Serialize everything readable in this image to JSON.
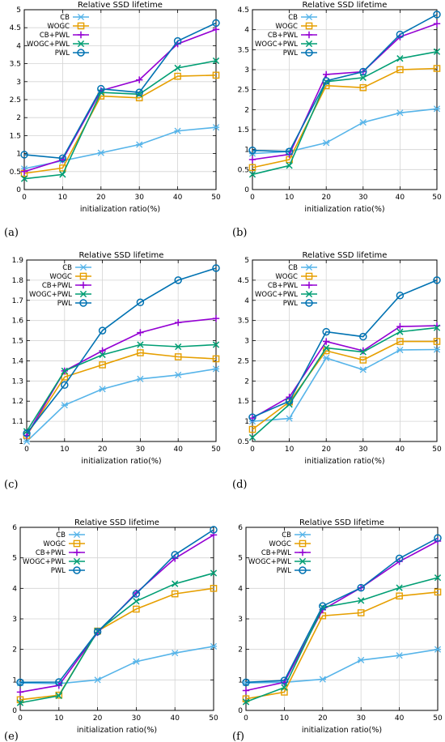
{
  "chart_data": [
    {
      "panel": "(a)",
      "type": "line",
      "title": "Relative SSD lifetime",
      "xlabel": "initialization ratio(%)",
      "ylabel": "",
      "ylim": [
        0,
        5
      ],
      "yticks": [
        0,
        0.5,
        1,
        1.5,
        2,
        2.5,
        3,
        3.5,
        4,
        4.5,
        5
      ],
      "ytick_labels": [
        "0",
        "0.5",
        "1",
        "1.5",
        "2",
        "2.5",
        "3",
        "3.5",
        "4",
        "4.5",
        "5"
      ],
      "x": [
        0,
        10,
        20,
        30,
        40,
        50
      ],
      "xtick_labels": [
        "0",
        "10",
        "20",
        "30",
        "40",
        "50"
      ],
      "legend_position": "top-left",
      "grid": true,
      "series": [
        {
          "name": "CB",
          "values": [
            0.58,
            0.8,
            1.02,
            1.25,
            1.63,
            1.73
          ]
        },
        {
          "name": "WOGC",
          "values": [
            0.45,
            0.6,
            2.6,
            2.55,
            3.15,
            3.18
          ]
        },
        {
          "name": "CB+PWL",
          "values": [
            0.5,
            0.83,
            2.75,
            3.05,
            4.05,
            4.45
          ]
        },
        {
          "name": "WOGC+PWL",
          "values": [
            0.3,
            0.42,
            2.7,
            2.65,
            3.38,
            3.58
          ]
        },
        {
          "name": "PWL",
          "values": [
            0.97,
            0.87,
            2.8,
            2.7,
            4.13,
            4.63
          ]
        }
      ]
    },
    {
      "panel": "(b)",
      "type": "line",
      "title": "Relative SSD lifetime",
      "xlabel": "initialization ratio(%)",
      "ylabel": "",
      "ylim": [
        0,
        4.5
      ],
      "yticks": [
        0,
        0.5,
        1,
        1.5,
        2,
        2.5,
        3,
        3.5,
        4,
        4.5
      ],
      "ytick_labels": [
        "0",
        "0.5",
        "1",
        "1.5",
        "2",
        "2.5",
        "3",
        "3.5",
        "4",
        "4.5"
      ],
      "x": [
        0,
        10,
        20,
        30,
        40,
        50
      ],
      "xtick_labels": [
        "0",
        "10",
        "20",
        "30",
        "40",
        "50"
      ],
      "legend_position": "top-left",
      "grid": true,
      "series": [
        {
          "name": "CB",
          "values": [
            0.9,
            0.95,
            1.17,
            1.68,
            1.92,
            2.02
          ]
        },
        {
          "name": "WOGC",
          "values": [
            0.55,
            0.75,
            2.6,
            2.55,
            3.0,
            3.03
          ]
        },
        {
          "name": "CB+PWL",
          "values": [
            0.75,
            0.88,
            2.88,
            2.95,
            3.82,
            4.15
          ]
        },
        {
          "name": "WOGC+PWL",
          "values": [
            0.38,
            0.6,
            2.7,
            2.8,
            3.28,
            3.45
          ]
        },
        {
          "name": "PWL",
          "values": [
            0.98,
            0.95,
            2.72,
            2.95,
            3.88,
            4.38
          ]
        }
      ]
    },
    {
      "panel": "(c)",
      "type": "line",
      "title": "Relative SSD lifetime",
      "xlabel": "initialization ratio(%)",
      "ylabel": "",
      "ylim": [
        1,
        1.9
      ],
      "yticks": [
        1,
        1.1,
        1.2,
        1.3,
        1.4,
        1.5,
        1.6,
        1.7,
        1.8,
        1.9
      ],
      "ytick_labels": [
        "1",
        "1.1",
        "1.2",
        "1.3",
        "1.4",
        "1.5",
        "1.6",
        "1.7",
        "1.8",
        "1.9"
      ],
      "x": [
        0,
        10,
        20,
        30,
        40,
        50
      ],
      "xtick_labels": [
        "0",
        "10",
        "20",
        "30",
        "40",
        "50"
      ],
      "legend_position": "top-left",
      "grid": true,
      "series": [
        {
          "name": "CB",
          "values": [
            1.0,
            1.18,
            1.26,
            1.31,
            1.33,
            1.36
          ]
        },
        {
          "name": "WOGC",
          "values": [
            1.03,
            1.32,
            1.38,
            1.44,
            1.42,
            1.41
          ]
        },
        {
          "name": "CB+PWL",
          "values": [
            1.03,
            1.35,
            1.45,
            1.54,
            1.59,
            1.61
          ]
        },
        {
          "name": "WOGC+PWL",
          "values": [
            1.05,
            1.35,
            1.43,
            1.48,
            1.47,
            1.48
          ]
        },
        {
          "name": "PWL",
          "values": [
            1.04,
            1.28,
            1.55,
            1.69,
            1.8,
            1.86
          ]
        }
      ]
    },
    {
      "panel": "(d)",
      "type": "line",
      "title": "Relative SSD lifetime",
      "xlabel": "initialization ratio(%)",
      "ylabel": "",
      "ylim": [
        0.5,
        5
      ],
      "yticks": [
        0.5,
        1,
        1.5,
        2,
        2.5,
        3,
        3.5,
        4,
        4.5,
        5
      ],
      "ytick_labels": [
        "0.5",
        "1",
        "1.5",
        "2",
        "2.5",
        "3",
        "3.5",
        "4",
        "4.5",
        "5"
      ],
      "x": [
        0,
        10,
        20,
        30,
        40,
        50
      ],
      "xtick_labels": [
        "0",
        "10",
        "20",
        "30",
        "40",
        "50"
      ],
      "legend_position": "top-left",
      "grid": true,
      "series": [
        {
          "name": "CB",
          "values": [
            1.0,
            1.07,
            2.57,
            2.28,
            2.77,
            2.78
          ]
        },
        {
          "name": "WOGC",
          "values": [
            0.8,
            1.48,
            2.75,
            2.52,
            2.98,
            2.98
          ]
        },
        {
          "name": "CB+PWL",
          "values": [
            1.08,
            1.6,
            2.98,
            2.75,
            3.35,
            3.37
          ]
        },
        {
          "name": "WOGC+PWL",
          "values": [
            0.6,
            1.42,
            2.82,
            2.72,
            3.22,
            3.32
          ]
        },
        {
          "name": "PWL",
          "values": [
            1.1,
            1.5,
            3.22,
            3.1,
            4.12,
            4.5
          ]
        }
      ]
    },
    {
      "panel": "(e)",
      "type": "line",
      "title": "Relative SSD lifetime",
      "xlabel": "initialization ratio(%)",
      "ylabel": "",
      "ylim": [
        0,
        6
      ],
      "yticks": [
        0,
        1,
        2,
        3,
        4,
        5,
        6
      ],
      "ytick_labels": [
        "0",
        "1",
        "2",
        "3",
        "4",
        "5",
        "6"
      ],
      "x": [
        0,
        10,
        20,
        30,
        40,
        50
      ],
      "xtick_labels": [
        "0",
        "10",
        "20",
        "30",
        "40",
        "50"
      ],
      "legend_position": "top-left",
      "grid": true,
      "series": [
        {
          "name": "CB",
          "values": [
            0.9,
            0.88,
            1.0,
            1.6,
            1.88,
            2.1
          ]
        },
        {
          "name": "WOGC",
          "values": [
            0.35,
            0.5,
            2.6,
            3.32,
            3.82,
            4.0
          ]
        },
        {
          "name": "CB+PWL",
          "values": [
            0.6,
            0.82,
            2.55,
            3.85,
            4.98,
            5.75
          ]
        },
        {
          "name": "WOGC+PWL",
          "values": [
            0.25,
            0.48,
            2.6,
            3.58,
            4.15,
            4.5
          ]
        },
        {
          "name": "PWL",
          "values": [
            0.92,
            0.93,
            2.58,
            3.82,
            5.1,
            5.92
          ]
        }
      ]
    },
    {
      "panel": "(f)",
      "type": "line",
      "title": "Relative SSD lifetime",
      "xlabel": "initialization ratio(%)",
      "ylabel": "",
      "ylim": [
        0,
        6
      ],
      "yticks": [
        0,
        1,
        2,
        3,
        4,
        5,
        6
      ],
      "ytick_labels": [
        "0",
        "1",
        "2",
        "3",
        "4",
        "5",
        "6"
      ],
      "x": [
        0,
        10,
        20,
        30,
        40,
        50
      ],
      "xtick_labels": [
        "0",
        "10",
        "20",
        "30",
        "40",
        "50"
      ],
      "legend_position": "top-left",
      "grid": true,
      "series": [
        {
          "name": "CB",
          "values": [
            0.9,
            0.92,
            1.02,
            1.65,
            1.8,
            2.0
          ]
        },
        {
          "name": "WOGC",
          "values": [
            0.38,
            0.6,
            3.1,
            3.2,
            3.75,
            3.88
          ]
        },
        {
          "name": "CB+PWL",
          "values": [
            0.65,
            0.92,
            3.3,
            4.02,
            4.88,
            5.55
          ]
        },
        {
          "name": "WOGC+PWL",
          "values": [
            0.28,
            0.75,
            3.38,
            3.6,
            4.02,
            4.35
          ]
        },
        {
          "name": "PWL",
          "values": [
            0.92,
            0.98,
            3.42,
            4.02,
            4.98,
            5.65
          ]
        }
      ]
    }
  ],
  "series_styles": [
    {
      "name": "CB",
      "color": "#56b4e9",
      "marker": "star"
    },
    {
      "name": "WOGC",
      "color": "#e69f00",
      "marker": "square"
    },
    {
      "name": "CB+PWL",
      "color": "#9400d3",
      "marker": "plus"
    },
    {
      "name": "WOGC+PWL",
      "color": "#009e73",
      "marker": "cross"
    },
    {
      "name": "PWL",
      "color": "#0072b2",
      "marker": "circle"
    }
  ]
}
